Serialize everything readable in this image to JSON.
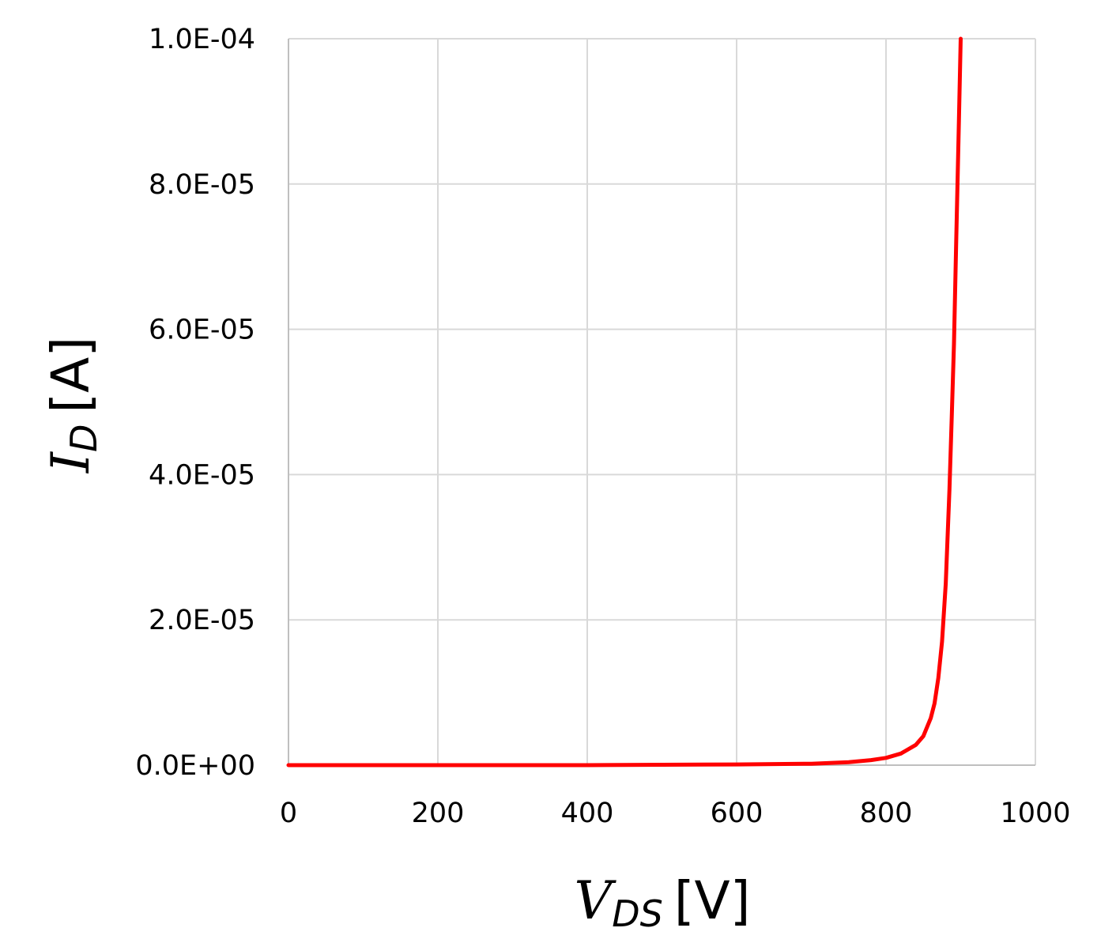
{
  "chart_data": {
    "type": "line",
    "title": "",
    "xlabel": {
      "symbol": "V",
      "subscript": "DS",
      "unit": "[V]"
    },
    "ylabel": {
      "symbol": "I",
      "subscript": "D",
      "unit": "[A]"
    },
    "xlim": [
      0,
      1000
    ],
    "ylim": [
      0,
      0.0001
    ],
    "x_ticks": [
      0,
      200,
      400,
      600,
      800,
      1000
    ],
    "x_tick_labels": [
      "0",
      "200",
      "400",
      "600",
      "800",
      "1000"
    ],
    "y_ticks": [
      0,
      2e-05,
      4e-05,
      6e-05,
      8e-05,
      0.0001
    ],
    "y_tick_labels": [
      "0.0E+00",
      "2.0E-05",
      "4.0E-05",
      "6.0E-05",
      "8.0E-05",
      "1.0E-04"
    ],
    "grid": true,
    "legend": "none",
    "series": [
      {
        "color": "#ff0000",
        "x": [
          0,
          200,
          400,
          600,
          700,
          750,
          780,
          800,
          820,
          840,
          850,
          860,
          865,
          870,
          875,
          880,
          885,
          888,
          891,
          894,
          897,
          900
        ],
        "y": [
          0,
          0,
          0,
          1e-07,
          2e-07,
          4e-07,
          7e-07,
          1e-06,
          1.6e-06,
          2.8e-06,
          4e-06,
          6.5e-06,
          8.5e-06,
          1.2e-05,
          1.7e-05,
          2.5e-05,
          3.8e-05,
          4.8e-05,
          5.8e-05,
          7.2e-05,
          8.6e-05,
          0.0001
        ]
      }
    ]
  }
}
